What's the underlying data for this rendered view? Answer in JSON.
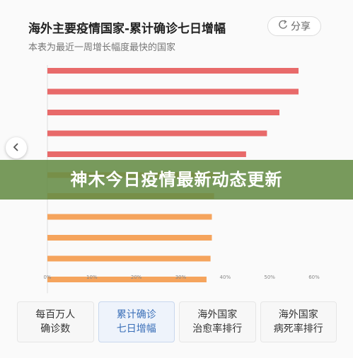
{
  "header": {
    "title": "海外主要疫情国家-累计确诊七日增幅",
    "subtitle": "本表为最近一周增长幅度最快的国家",
    "share_label": "分享"
  },
  "banner": {
    "text": "神木今日疫情最新动态更新"
  },
  "tabs": [
    {
      "line1": "每百万人",
      "line2": "确诊数"
    },
    {
      "line1": "累计确诊",
      "line2": "七日增幅"
    },
    {
      "line1": "海外国家",
      "line2": "治愈率排行"
    },
    {
      "line1": "海外国家",
      "line2": "病死率排行"
    }
  ],
  "colors": {
    "red": "#e86a6a",
    "orange": "#f5a45d",
    "active_tab": "#3a6fb8"
  },
  "chart_data": {
    "type": "bar",
    "orientation": "horizontal",
    "categories": [
      "",
      "",
      "",
      "",
      "",
      "",
      "",
      "",
      "",
      "",
      ""
    ],
    "values": [
      56.5,
      56.5,
      52.2,
      49.4,
      44.7,
      38.5,
      37.5,
      37.0,
      37.0,
      36.7,
      35.8
    ],
    "xticks": [
      "0%",
      "10%",
      "20%",
      "30%",
      "40%",
      "50%",
      "60%"
    ],
    "xlim": [
      0,
      60
    ],
    "grid": false
  }
}
